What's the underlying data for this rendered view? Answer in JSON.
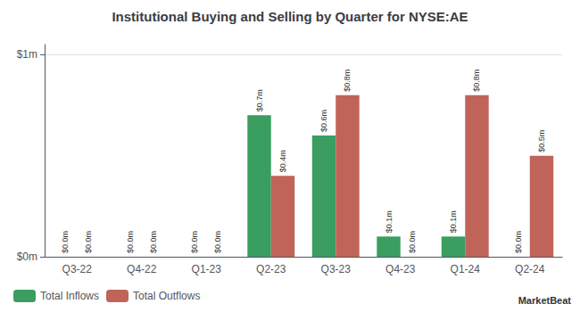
{
  "chart_data": {
    "type": "bar",
    "title": "Institutional Buying and Selling by Quarter for NYSE:AE",
    "categories": [
      "Q3-22",
      "Q4-22",
      "Q1-23",
      "Q2-23",
      "Q3-23",
      "Q4-23",
      "Q1-24",
      "Q2-24"
    ],
    "series": [
      {
        "name": "Total Inflows",
        "color": "#3a9e60",
        "values": [
          0.0,
          0.0,
          0.0,
          0.7,
          0.6,
          0.1,
          0.1,
          0.0
        ],
        "value_labels": [
          "$0.0m",
          "$0.0m",
          "$0.0m",
          "$0.7m",
          "$0.6m",
          "$0.1m",
          "$0.1m",
          "$0.0m"
        ]
      },
      {
        "name": "Total Outflows",
        "color": "#c0645a",
        "values": [
          0.0,
          0.0,
          0.0,
          0.4,
          0.8,
          0.0,
          0.8,
          0.5
        ],
        "value_labels": [
          "$0.0m",
          "$0.0m",
          "$0.0m",
          "$0.4m",
          "$0.8m",
          "$0.0m",
          "$0.8m",
          "$0.5m"
        ]
      }
    ],
    "ylim": [
      0,
      1.05
    ],
    "yticks": [
      {
        "value": 0.0,
        "label": "$0m"
      },
      {
        "value": 1.0,
        "label": "$1m"
      }
    ],
    "grid": true,
    "data_labels": true,
    "legend": "lower left",
    "annotations": [
      "MarketBeat"
    ]
  }
}
